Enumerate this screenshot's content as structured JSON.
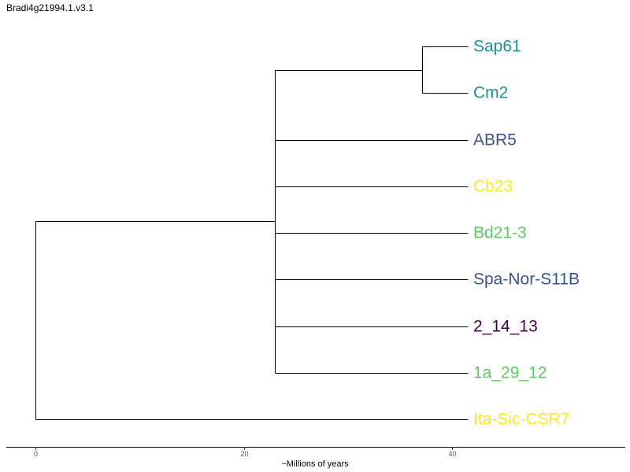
{
  "title": "Bradi4g21994.1.v3.1",
  "tree": {
    "type": "dendrogram",
    "root_time": 0,
    "tips": [
      {
        "name": "Sap61",
        "color": "#21908c"
      },
      {
        "name": "Cm2",
        "color": "#21908c"
      },
      {
        "name": "ABR5",
        "color": "#3b528b"
      },
      {
        "name": "Cb23",
        "color": "#fde725"
      },
      {
        "name": "Bd21-3",
        "color": "#5ec962"
      },
      {
        "name": "Spa-Nor-S11B",
        "color": "#3b528b"
      },
      {
        "name": "2_14_13",
        "color": "#440154"
      },
      {
        "name": "1a_29_12",
        "color": "#5ec962"
      },
      {
        "name": "Ita-Sic-CSR7",
        "color": "#fde725"
      }
    ],
    "tip_time": 41.5,
    "nodes": [
      {
        "id": "n_sap_cm",
        "time": 37.1,
        "children": [
          "Sap61",
          "Cm2"
        ]
      },
      {
        "id": "n_main",
        "time": 23.0,
        "children": [
          "n_sap_cm",
          "ABR5",
          "Cb23",
          "Bd21-3",
          "Spa-Nor-S11B",
          "2_14_13",
          "1a_29_12"
        ]
      },
      {
        "id": "n_root",
        "time": 0,
        "children": [
          "n_main",
          "Ita-Sic-CSR7"
        ]
      }
    ]
  },
  "axis": {
    "title": "~Millions of years",
    "ticks": [
      0,
      20,
      40
    ],
    "tick_labels": [
      "0",
      "20",
      "40"
    ],
    "range": [
      -2.8,
      56.6
    ]
  }
}
